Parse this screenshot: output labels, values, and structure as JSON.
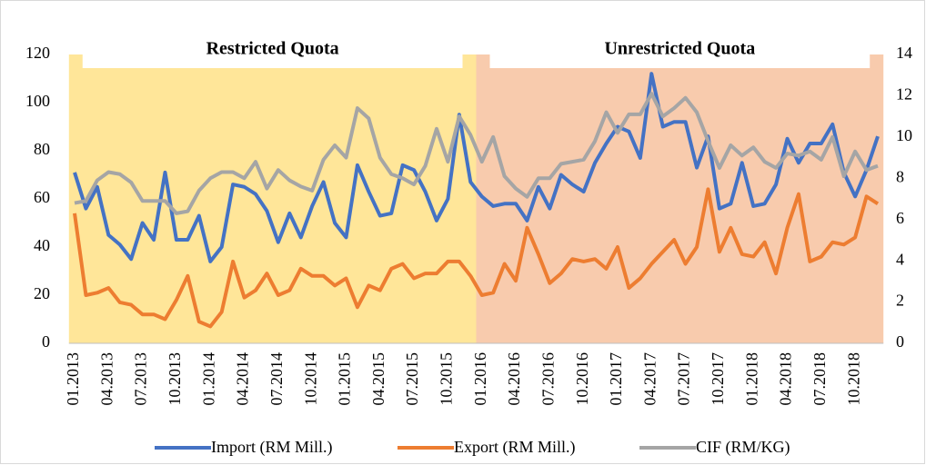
{
  "chart_data": {
    "type": "line",
    "categories": [
      "01.2013",
      null,
      null,
      "04.2013",
      null,
      null,
      "07.2013",
      null,
      null,
      "10.2013",
      null,
      null,
      "01.2014",
      null,
      null,
      "04.2014",
      null,
      null,
      "07.2014",
      null,
      null,
      "10.2014",
      null,
      null,
      "01.2015",
      null,
      null,
      "04.2015",
      null,
      null,
      "07.2015",
      null,
      null,
      "10.2015",
      null,
      null,
      "01.2016",
      null,
      null,
      "04.2016",
      null,
      null,
      "07.2016",
      null,
      null,
      "10.2016",
      null,
      null,
      "01.2017",
      null,
      null,
      "04.2017",
      null,
      null,
      "07.2017",
      null,
      null,
      "10.2017",
      null,
      null,
      "01.2018",
      null,
      null,
      "04.2018",
      null,
      null,
      "07.2018",
      null,
      null,
      "10.2018",
      null,
      null
    ],
    "series": [
      {
        "name": "Import (RM Mill.)",
        "color": "#4472c4",
        "values": [
          71,
          56,
          65,
          45,
          41,
          35,
          50,
          43,
          71,
          43,
          43,
          53,
          34,
          40,
          66,
          65,
          62,
          55,
          42,
          54,
          44,
          57,
          67,
          50,
          44,
          74,
          63,
          53,
          54,
          74,
          72,
          63,
          51,
          60,
          95,
          67,
          61,
          57,
          58,
          58,
          51,
          65,
          56,
          70,
          66,
          63,
          75,
          83,
          90,
          88,
          77,
          112,
          90,
          92,
          92,
          73,
          86,
          56,
          58,
          75,
          57,
          58,
          66,
          85,
          75,
          83,
          83,
          91,
          71,
          61,
          72,
          86
        ]
      },
      {
        "name": "Export (RM Mill.)",
        "color": "#ed7d31",
        "values": [
          54,
          20,
          21,
          23,
          17,
          16,
          12,
          12,
          10,
          18,
          28,
          9,
          7,
          13,
          34,
          19,
          22,
          29,
          20,
          22,
          31,
          28,
          28,
          24,
          27,
          15,
          24,
          22,
          31,
          33,
          27,
          29,
          29,
          34,
          34,
          28,
          20,
          21,
          33,
          26,
          48,
          37,
          25,
          29,
          35,
          34,
          35,
          31,
          40,
          23,
          27,
          33,
          38,
          43,
          33,
          40,
          64,
          38,
          48,
          37,
          36,
          42,
          29,
          48,
          62,
          34,
          36,
          42,
          41,
          44,
          61,
          58
        ]
      },
      {
        "name": "CIF (RM/KG)",
        "color": "#a5a5a5",
        "axis": "y2",
        "values": [
          6.8,
          6.9,
          7.9,
          8.3,
          8.2,
          7.8,
          6.9,
          6.9,
          6.9,
          6.3,
          6.4,
          7.4,
          8.0,
          8.3,
          8.3,
          8.0,
          8.8,
          7.5,
          8.4,
          7.9,
          7.6,
          7.4,
          8.9,
          9.6,
          9.0,
          11.4,
          10.9,
          9.0,
          8.2,
          8.0,
          7.7,
          8.6,
          10.4,
          8.8,
          11.0,
          10.1,
          8.8,
          10.0,
          8.1,
          7.5,
          7.1,
          8.0,
          8.0,
          8.7,
          8.8,
          8.9,
          9.8,
          11.2,
          10.2,
          11.1,
          11.1,
          12.1,
          11.0,
          11.4,
          11.9,
          11.2,
          9.8,
          8.5,
          9.6,
          9.1,
          9.5,
          8.8,
          8.5,
          9.2,
          9.1,
          9.3,
          8.9,
          10.0,
          8.1,
          9.3,
          8.4,
          8.6
        ]
      }
    ],
    "regions": [
      {
        "label": "Restricted Quota",
        "color": "#ffe699",
        "start": 0,
        "end": 35
      },
      {
        "label": "Unrestricted Quota",
        "color": "#f8cbad",
        "start": 36,
        "end": 71
      }
    ],
    "ylim": [
      0,
      120
    ],
    "yticks": [
      0,
      20,
      40,
      60,
      80,
      100,
      120
    ],
    "y2lim": [
      0,
      14
    ],
    "y2ticks": [
      0,
      2,
      4,
      6,
      8,
      10,
      12,
      14
    ]
  }
}
